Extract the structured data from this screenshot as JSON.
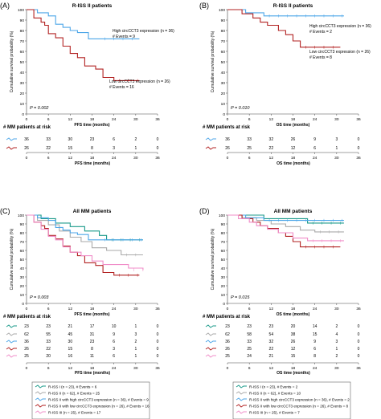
{
  "chart_data": [
    {
      "type": "line",
      "panel_letter": "(A)",
      "title": "R-ISS II patients",
      "xlabel": "PFS time (months)",
      "ylabel": "Cumulative survival probability (%)",
      "xlim": [
        0,
        36
      ],
      "ylim": [
        0,
        100
      ],
      "xticks": [
        "0",
        "6",
        "12",
        "18",
        "24",
        "30",
        "36"
      ],
      "yticks": [
        "0",
        "10",
        "20",
        "30",
        "40",
        "50",
        "60",
        "70",
        "80",
        "90",
        "100"
      ],
      "p_value": "P = 0.002",
      "series": [
        {
          "color": "#4da6e8",
          "annotation": [
            "High circCCT3 expression (n = 36)",
            "# Events = 9"
          ],
          "points": [
            [
              0,
              100
            ],
            [
              3,
              97
            ],
            [
              6,
              94
            ],
            [
              8,
              86
            ],
            [
              10,
              83
            ],
            [
              12,
              80
            ],
            [
              14,
              78
            ],
            [
              17,
              72
            ],
            [
              20,
              72
            ],
            [
              31,
              72
            ]
          ]
        },
        {
          "color": "#b22222",
          "annotation": [
            "Low circCCT3 expression (n = 26)",
            "# Events = 16"
          ],
          "points": [
            [
              0,
              100
            ],
            [
              2,
              92
            ],
            [
              4,
              88
            ],
            [
              5,
              85
            ],
            [
              6,
              77
            ],
            [
              8,
              73
            ],
            [
              10,
              65
            ],
            [
              12,
              58
            ],
            [
              14,
              54
            ],
            [
              16,
              46
            ],
            [
              19,
              43
            ],
            [
              21,
              35
            ],
            [
              24,
              32
            ],
            [
              31,
              32
            ]
          ]
        }
      ],
      "risk_table": {
        "title": "# MM patients at risk",
        "xlabel": "PFS time (months)",
        "ticks": [
          "0",
          "6",
          "12",
          "18",
          "24",
          "30",
          "36"
        ],
        "rows": [
          {
            "color": "#4da6e8",
            "values": [
              "36",
              "33",
              "30",
              "23",
              "6",
              "2",
              "0"
            ]
          },
          {
            "color": "#b22222",
            "values": [
              "26",
              "22",
              "15",
              "8",
              "3",
              "1",
              "0"
            ]
          }
        ]
      }
    },
    {
      "type": "line",
      "panel_letter": "(B)",
      "title": "R-ISS II patients",
      "xlabel": "OS time (months)",
      "ylabel": "Cumulative survival probability (%)",
      "xlim": [
        0,
        36
      ],
      "ylim": [
        0,
        100
      ],
      "xticks": [
        "0",
        "6",
        "12",
        "18",
        "24",
        "30",
        "36"
      ],
      "yticks": [
        "0",
        "10",
        "20",
        "30",
        "40",
        "50",
        "60",
        "70",
        "80",
        "90",
        "100"
      ],
      "p_value": "P = 0.010",
      "series": [
        {
          "color": "#4da6e8",
          "annotation": [
            "High circCCT3 expression (n = 36)",
            "# Events = 2"
          ],
          "points": [
            [
              0,
              100
            ],
            [
              5,
              97
            ],
            [
              10,
              94
            ],
            [
              32,
              94
            ]
          ]
        },
        {
          "color": "#b22222",
          "annotation": [
            "Low circCCT3 expression (n = 26)",
            "# Events = 8"
          ],
          "points": [
            [
              0,
              100
            ],
            [
              4,
              96
            ],
            [
              7,
              92
            ],
            [
              9,
              88
            ],
            [
              11,
              85
            ],
            [
              14,
              80
            ],
            [
              16,
              76
            ],
            [
              18,
              70
            ],
            [
              20,
              64
            ],
            [
              31,
              64
            ]
          ]
        }
      ],
      "risk_table": {
        "title": "# MM patients at risk",
        "xlabel": "OS time (months)",
        "ticks": [
          "0",
          "6",
          "12",
          "18",
          "24",
          "30",
          "36"
        ],
        "rows": [
          {
            "color": "#4da6e8",
            "values": [
              "36",
              "33",
              "32",
              "26",
              "9",
              "3",
              "0"
            ]
          },
          {
            "color": "#b22222",
            "values": [
              "26",
              "25",
              "22",
              "12",
              "6",
              "1",
              "0"
            ]
          }
        ]
      }
    },
    {
      "type": "line",
      "panel_letter": "(C)",
      "title": "All MM patients",
      "xlabel": "PFS time (months)",
      "ylabel": "Cumulative survival probability (%)",
      "xlim": [
        0,
        36
      ],
      "ylim": [
        0,
        100
      ],
      "xticks": [
        "0",
        "6",
        "12",
        "18",
        "24",
        "30",
        "36"
      ],
      "yticks": [
        "0",
        "10",
        "20",
        "30",
        "40",
        "50",
        "60",
        "70",
        "80",
        "90",
        "100"
      ],
      "p_value": "P = 0.003",
      "series": [
        {
          "color": "#1a9a8a",
          "points": [
            [
              0,
              100
            ],
            [
              4,
              96
            ],
            [
              8,
              91
            ],
            [
              12,
              87
            ],
            [
              16,
              82
            ],
            [
              20,
              77
            ],
            [
              22,
              72
            ],
            [
              32,
              72
            ]
          ]
        },
        {
          "color": "#aaaaaa",
          "points": [
            [
              0,
              100
            ],
            [
              3,
              94
            ],
            [
              6,
              89
            ],
            [
              9,
              82
            ],
            [
              12,
              75
            ],
            [
              15,
              70
            ],
            [
              18,
              63
            ],
            [
              22,
              60
            ],
            [
              26,
              55
            ],
            [
              32,
              55
            ]
          ]
        },
        {
          "color": "#4da6e8",
          "points": [
            [
              0,
              100
            ],
            [
              3,
              97
            ],
            [
              6,
              94
            ],
            [
              8,
              86
            ],
            [
              10,
              83
            ],
            [
              12,
              80
            ],
            [
              14,
              78
            ],
            [
              17,
              72
            ],
            [
              20,
              72
            ],
            [
              32,
              72
            ]
          ]
        },
        {
          "color": "#b22222",
          "points": [
            [
              0,
              100
            ],
            [
              2,
              92
            ],
            [
              4,
              88
            ],
            [
              5,
              85
            ],
            [
              6,
              77
            ],
            [
              8,
              73
            ],
            [
              10,
              65
            ],
            [
              12,
              58
            ],
            [
              14,
              54
            ],
            [
              16,
              46
            ],
            [
              19,
              43
            ],
            [
              21,
              35
            ],
            [
              24,
              32
            ],
            [
              31,
              32
            ]
          ]
        },
        {
          "color": "#f08cc8",
          "points": [
            [
              0,
              100
            ],
            [
              2,
              92
            ],
            [
              4,
              84
            ],
            [
              6,
              76
            ],
            [
              8,
              72
            ],
            [
              10,
              64
            ],
            [
              12,
              58
            ],
            [
              15,
              54
            ],
            [
              18,
              48
            ],
            [
              21,
              44
            ],
            [
              24,
              44
            ],
            [
              28,
              40
            ],
            [
              32,
              38
            ]
          ]
        }
      ],
      "risk_table": {
        "title": "# MM patients at risk",
        "xlabel": "PFS time (months)",
        "ticks": [
          "0",
          "6",
          "12",
          "18",
          "24",
          "30",
          "36"
        ],
        "rows": [
          {
            "color": "#1a9a8a",
            "values": [
              "23",
              "23",
              "21",
              "17",
              "10",
              "1",
              "0"
            ]
          },
          {
            "color": "#aaaaaa",
            "values": [
              "62",
              "55",
              "45",
              "31",
              "9",
              "3",
              "0"
            ]
          },
          {
            "color": "#4da6e8",
            "values": [
              "36",
              "33",
              "30",
              "23",
              "6",
              "2",
              "0"
            ]
          },
          {
            "color": "#b22222",
            "values": [
              "26",
              "22",
              "15",
              "8",
              "3",
              "1",
              "0"
            ]
          },
          {
            "color": "#f08cc8",
            "values": [
              "25",
              "20",
              "16",
              "11",
              "6",
              "1",
              "0"
            ]
          }
        ]
      },
      "legend": [
        {
          "color": "#1a9a8a",
          "label": "R-ISS I (n = 23), # Events = 6"
        },
        {
          "color": "#aaaaaa",
          "label": "R-ISS II (n = 62), # Events = 25"
        },
        {
          "color": "#4da6e8",
          "label": "R-ISS II with high circCCT3 expression (n = 36), # Events = 9"
        },
        {
          "color": "#b22222",
          "label": "R-ISS II with low circCCT3 expression (n = 26), # Events = 16"
        },
        {
          "color": "#f08cc8",
          "label": "R-ISS III (n = 25), # Events = 17"
        }
      ]
    },
    {
      "type": "line",
      "panel_letter": "(D)",
      "title": "All MM patients",
      "xlabel": "OS time (months)",
      "ylabel": "Cumulative survival probability (%)",
      "xlim": [
        0,
        36
      ],
      "ylim": [
        0,
        100
      ],
      "xticks": [
        "0",
        "6",
        "12",
        "18",
        "24",
        "30",
        "36"
      ],
      "yticks": [
        "0",
        "10",
        "20",
        "30",
        "40",
        "50",
        "60",
        "70",
        "80",
        "90",
        "100"
      ],
      "p_value": "P = 0.015",
      "series": [
        {
          "color": "#1a9a8a",
          "points": [
            [
              0,
              100
            ],
            [
              10,
              96
            ],
            [
              22,
              91
            ],
            [
              32,
              91
            ]
          ]
        },
        {
          "color": "#aaaaaa",
          "points": [
            [
              0,
              100
            ],
            [
              4,
              97
            ],
            [
              8,
              94
            ],
            [
              12,
              90
            ],
            [
              16,
              87
            ],
            [
              20,
              83
            ],
            [
              24,
              81
            ],
            [
              32,
              81
            ]
          ]
        },
        {
          "color": "#4da6e8",
          "points": [
            [
              0,
              100
            ],
            [
              5,
              97
            ],
            [
              10,
              94
            ],
            [
              32,
              94
            ]
          ]
        },
        {
          "color": "#b22222",
          "points": [
            [
              0,
              100
            ],
            [
              4,
              96
            ],
            [
              7,
              92
            ],
            [
              9,
              88
            ],
            [
              11,
              85
            ],
            [
              14,
              80
            ],
            [
              16,
              76
            ],
            [
              18,
              70
            ],
            [
              20,
              64
            ],
            [
              31,
              64
            ]
          ]
        },
        {
          "color": "#f08cc8",
          "points": [
            [
              0,
              100
            ],
            [
              3,
              96
            ],
            [
              6,
              92
            ],
            [
              8,
              88
            ],
            [
              11,
              84
            ],
            [
              14,
              80
            ],
            [
              18,
              74
            ],
            [
              22,
              71
            ],
            [
              32,
              71
            ]
          ]
        }
      ],
      "risk_table": {
        "title": "# MM patients at risk",
        "xlabel": "OS time (months)",
        "ticks": [
          "0",
          "6",
          "12",
          "18",
          "24",
          "30",
          "36"
        ],
        "rows": [
          {
            "color": "#1a9a8a",
            "values": [
              "23",
              "23",
              "23",
              "20",
              "14",
              "2",
              "0"
            ]
          },
          {
            "color": "#aaaaaa",
            "values": [
              "62",
              "58",
              "54",
              "38",
              "15",
              "4",
              "0"
            ]
          },
          {
            "color": "#4da6e8",
            "values": [
              "36",
              "33",
              "32",
              "26",
              "9",
              "3",
              "0"
            ]
          },
          {
            "color": "#b22222",
            "values": [
              "26",
              "25",
              "22",
              "12",
              "6",
              "1",
              "0"
            ]
          },
          {
            "color": "#f08cc8",
            "values": [
              "25",
              "24",
              "21",
              "15",
              "8",
              "2",
              "0"
            ]
          }
        ]
      },
      "legend": [
        {
          "color": "#1a9a8a",
          "label": "R-ISS I (n = 23), # Events = 2"
        },
        {
          "color": "#aaaaaa",
          "label": "R-ISS II (n = 62), # Events = 10"
        },
        {
          "color": "#4da6e8",
          "label": "R-ISS II with high circCCT3 expression (n = 36), # Events = 2"
        },
        {
          "color": "#b22222",
          "label": "R-ISS II with low circCCT3 expression (n = 26), # Events = 8"
        },
        {
          "color": "#f08cc8",
          "label": "R-ISS III (n = 25), # Events = 7"
        }
      ]
    }
  ]
}
